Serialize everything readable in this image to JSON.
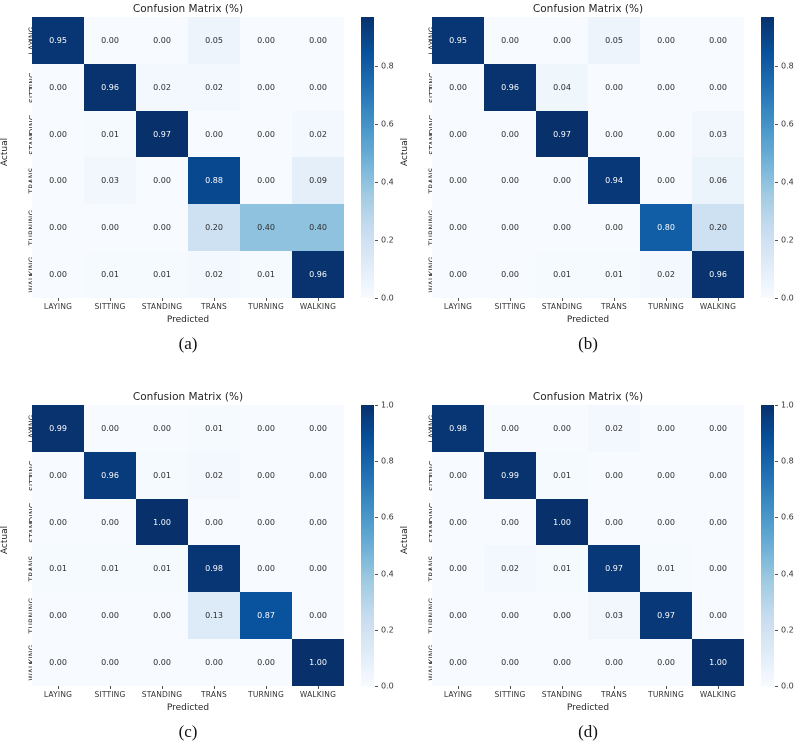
{
  "figure": {
    "background": "#ffffff"
  },
  "chart_data": [
    {
      "id": "a",
      "type": "heatmap",
      "title": "Confusion Matrix (%)",
      "xlabel": "Predicted",
      "ylabel": "Actual",
      "caption": "(a)",
      "categories": [
        "LAYING",
        "SITTING",
        "STANDING",
        "TRANS",
        "TURNING",
        "WALKING"
      ],
      "matrix": [
        [
          0.95,
          0.0,
          0.0,
          0.05,
          0.0,
          0.0
        ],
        [
          0.0,
          0.96,
          0.02,
          0.02,
          0.0,
          0.0
        ],
        [
          0.0,
          0.01,
          0.97,
          0.0,
          0.0,
          0.02
        ],
        [
          0.0,
          0.03,
          0.0,
          0.88,
          0.0,
          0.09
        ],
        [
          0.0,
          0.0,
          0.0,
          0.2,
          0.4,
          0.4
        ],
        [
          0.0,
          0.01,
          0.01,
          0.02,
          0.01,
          0.96
        ]
      ],
      "vmin": 0.0,
      "vmax": 0.97,
      "colormap": "Blues",
      "colorbar_ticks": [
        0.8,
        0.6,
        0.4,
        0.2,
        0.0
      ],
      "colorbar_tick_labels": [
        "0.8",
        "0.6",
        "0.4",
        "0.2",
        "0.0"
      ]
    },
    {
      "id": "b",
      "type": "heatmap",
      "title": "Confusion Matrix (%)",
      "xlabel": "Predicted",
      "ylabel": "Actual",
      "caption": "(b)",
      "categories": [
        "LAYING",
        "SITTING",
        "STANDING",
        "TRANS",
        "TURNING",
        "WALKING"
      ],
      "matrix": [
        [
          0.95,
          0.0,
          0.0,
          0.05,
          0.0,
          0.0
        ],
        [
          0.0,
          0.96,
          0.04,
          0.0,
          0.0,
          0.0
        ],
        [
          0.0,
          0.0,
          0.97,
          0.0,
          0.0,
          0.03
        ],
        [
          0.0,
          0.0,
          0.0,
          0.94,
          0.0,
          0.06
        ],
        [
          0.0,
          0.0,
          0.0,
          0.0,
          0.8,
          0.2
        ],
        [
          0.0,
          0.0,
          0.01,
          0.01,
          0.02,
          0.96
        ]
      ],
      "vmin": 0.0,
      "vmax": 0.97,
      "colormap": "Blues",
      "colorbar_ticks": [
        0.8,
        0.6,
        0.4,
        0.2,
        0.0
      ],
      "colorbar_tick_labels": [
        "0.8",
        "0.6",
        "0.4",
        "0.2",
        "0.0"
      ]
    },
    {
      "id": "c",
      "type": "heatmap",
      "title": "Confusion Matrix (%)",
      "xlabel": "Predicted",
      "ylabel": "Actual",
      "caption": "(c)",
      "categories": [
        "LAYING",
        "SITTING",
        "STANDING",
        "TRANS",
        "TURNING",
        "WALKING"
      ],
      "matrix": [
        [
          0.99,
          0.0,
          0.0,
          0.01,
          0.0,
          0.0
        ],
        [
          0.0,
          0.96,
          0.01,
          0.02,
          0.0,
          0.0
        ],
        [
          0.0,
          0.0,
          1.0,
          0.0,
          0.0,
          0.0
        ],
        [
          0.01,
          0.01,
          0.01,
          0.98,
          0.0,
          0.0
        ],
        [
          0.0,
          0.0,
          0.0,
          0.13,
          0.87,
          0.0
        ],
        [
          0.0,
          0.0,
          0.0,
          0.0,
          0.0,
          1.0
        ]
      ],
      "vmin": 0.0,
      "vmax": 1.0,
      "colormap": "Blues",
      "colorbar_ticks": [
        1.0,
        0.8,
        0.6,
        0.4,
        0.2,
        0.0
      ],
      "colorbar_tick_labels": [
        "1.0",
        "0.8",
        "0.6",
        "0.4",
        "0.2",
        "0.0"
      ]
    },
    {
      "id": "d",
      "type": "heatmap",
      "title": "Confusion Matrix (%)",
      "xlabel": "Predicted",
      "ylabel": "Actual",
      "caption": "(d)",
      "categories": [
        "LAYING",
        "SITTING",
        "STANDING",
        "TRANS",
        "TURNING",
        "WALKING"
      ],
      "matrix": [
        [
          0.98,
          0.0,
          0.0,
          0.02,
          0.0,
          0.0
        ],
        [
          0.0,
          0.99,
          0.01,
          0.0,
          0.0,
          0.0
        ],
        [
          0.0,
          0.0,
          1.0,
          0.0,
          0.0,
          0.0
        ],
        [
          0.0,
          0.02,
          0.01,
          0.97,
          0.01,
          0.0
        ],
        [
          0.0,
          0.0,
          0.0,
          0.03,
          0.97,
          0.0
        ],
        [
          0.0,
          0.0,
          0.0,
          0.0,
          0.0,
          1.0
        ]
      ],
      "vmin": 0.0,
      "vmax": 1.0,
      "colormap": "Blues",
      "colorbar_ticks": [
        1.0,
        0.8,
        0.6,
        0.4,
        0.2,
        0.0
      ],
      "colorbar_tick_labels": [
        "1.0",
        "0.8",
        "0.6",
        "0.4",
        "0.2",
        "0.0"
      ]
    }
  ]
}
